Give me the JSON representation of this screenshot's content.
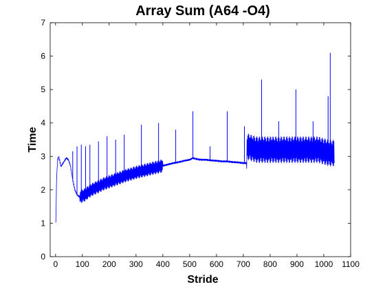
{
  "chart_data": {
    "type": "line",
    "title": "Array Sum  (A64  -O4)",
    "xlabel": "Stride",
    "ylabel": "Time",
    "xlim": [
      -20,
      1100
    ],
    "ylim": [
      0,
      7
    ],
    "xticks": [
      0,
      100,
      200,
      300,
      400,
      500,
      600,
      700,
      800,
      900,
      1000,
      1100
    ],
    "yticks": [
      0,
      1,
      2,
      3,
      4,
      5,
      6,
      7
    ],
    "grid": false,
    "series": [
      {
        "color": "#0000ff",
        "x": [
          1,
          4,
          8,
          12,
          16,
          20,
          24,
          32,
          40,
          48,
          56,
          64,
          72,
          80,
          88,
          96,
          100,
          110,
          120,
          130,
          140,
          150,
          160,
          180,
          200,
          220,
          240,
          260,
          280,
          300,
          320,
          340,
          360,
          380,
          400,
          420,
          440,
          460,
          480,
          500,
          512,
          520,
          540,
          560,
          580,
          600,
          620,
          640,
          660,
          680,
          700,
          712,
          714,
          730,
          750,
          770,
          800,
          830,
          860,
          890,
          920,
          950,
          980,
          1000,
          1020,
          1040
        ],
        "y": [
          1.0,
          2.4,
          2.9,
          3.0,
          2.85,
          2.7,
          2.75,
          2.85,
          2.95,
          2.9,
          2.7,
          2.3,
          2.0,
          1.85,
          1.8,
          1.8,
          1.82,
          1.85,
          1.92,
          1.98,
          2.02,
          2.06,
          2.1,
          2.18,
          2.24,
          2.3,
          2.36,
          2.42,
          2.47,
          2.52,
          2.56,
          2.6,
          2.64,
          2.68,
          2.72,
          2.76,
          2.8,
          2.83,
          2.87,
          2.9,
          2.95,
          2.93,
          2.9,
          2.9,
          2.88,
          2.87,
          2.85,
          2.85,
          2.83,
          2.82,
          2.8,
          2.8,
          3.3,
          3.25,
          3.2,
          3.2,
          3.2,
          3.2,
          3.2,
          3.2,
          3.2,
          3.2,
          3.2,
          3.15,
          3.1,
          3.1
        ],
        "spikes": [
          {
            "x": 64,
            "y": 3.15
          },
          {
            "x": 80,
            "y": 3.3
          },
          {
            "x": 96,
            "y": 3.35
          },
          {
            "x": 112,
            "y": 3.3
          },
          {
            "x": 128,
            "y": 3.35
          },
          {
            "x": 160,
            "y": 3.45
          },
          {
            "x": 192,
            "y": 3.6
          },
          {
            "x": 224,
            "y": 3.5
          },
          {
            "x": 256,
            "y": 3.65
          },
          {
            "x": 320,
            "y": 3.95
          },
          {
            "x": 384,
            "y": 4.0
          },
          {
            "x": 448,
            "y": 3.8
          },
          {
            "x": 512,
            "y": 4.35
          },
          {
            "x": 576,
            "y": 3.3
          },
          {
            "x": 640,
            "y": 4.35
          },
          {
            "x": 704,
            "y": 3.9
          },
          {
            "x": 768,
            "y": 5.3
          },
          {
            "x": 832,
            "y": 4.05
          },
          {
            "x": 896,
            "y": 5.0
          },
          {
            "x": 960,
            "y": 4.05
          },
          {
            "x": 1016,
            "y": 4.8
          },
          {
            "x": 1024,
            "y": 6.1
          }
        ],
        "noise_band": [
          {
            "x_from": 90,
            "x_to": 400,
            "amplitude": 0.2
          },
          {
            "x_from": 712,
            "x_to": 1040,
            "amplitude": 0.4
          }
        ]
      }
    ]
  }
}
